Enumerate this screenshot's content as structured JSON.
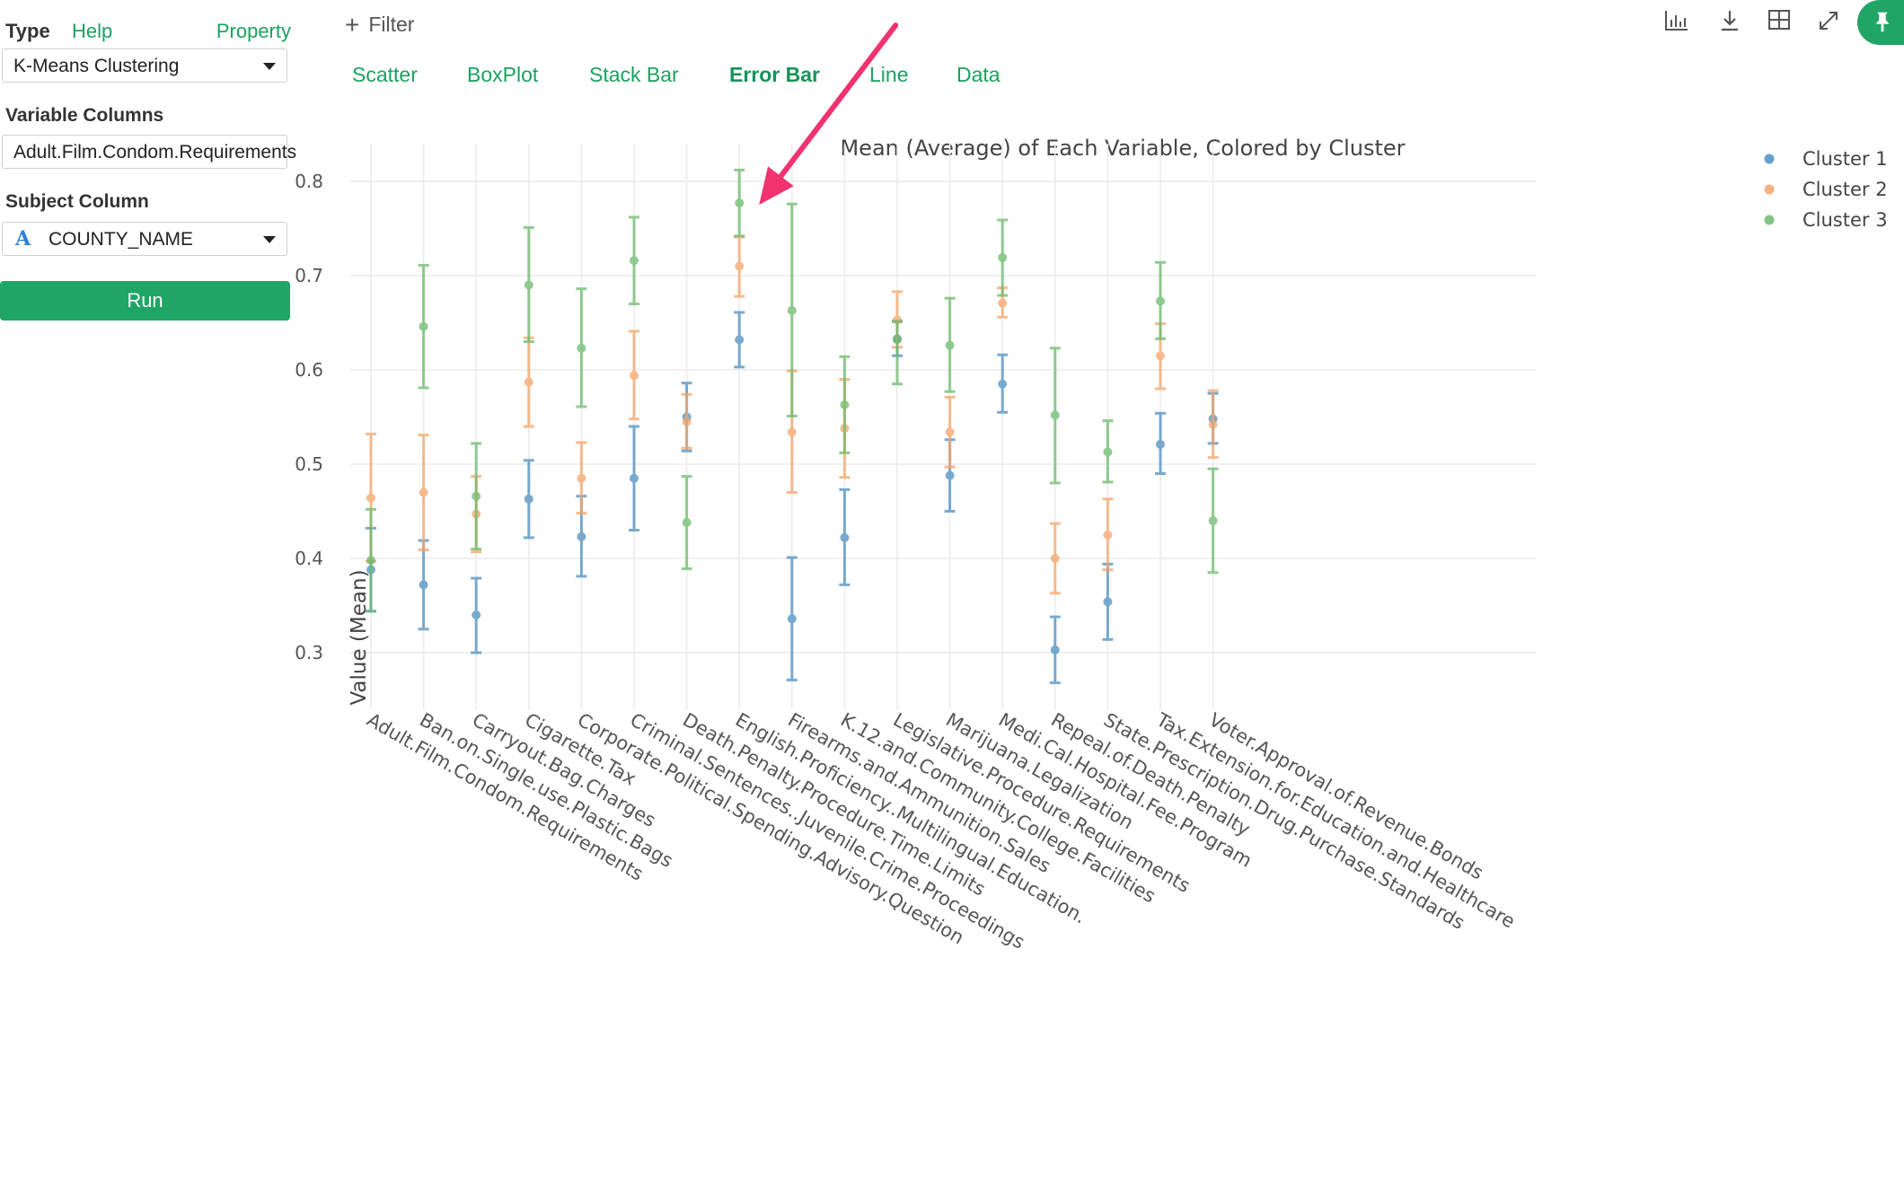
{
  "panel": {
    "type_label": "Type",
    "help_label": "Help",
    "property_label": "Property",
    "type_value": "K-Means Clustering",
    "variable_columns_label": "Variable Columns",
    "variable_columns_value": "Adult.Film.Condom.Requirements",
    "subject_column_label": "Subject Column",
    "subject_column_icon": "A",
    "subject_column_value": "COUNTY_NAME",
    "run_label": "Run"
  },
  "toolbar": {
    "filter_label": "Filter",
    "tabs": [
      "Scatter",
      "BoxPlot",
      "Stack Bar",
      "Error Bar",
      "Line",
      "Data"
    ],
    "active_tab": "Error Bar",
    "icons": [
      "bar-chart-icon",
      "download-icon",
      "grid-icon",
      "expand-icon",
      "pin-icon"
    ]
  },
  "chart_data": {
    "type": "errorbar",
    "title": "Mean (Average) of Each Variable, Colored by Cluster",
    "ylabel": "Value (Mean)",
    "ylim": [
      0.24,
      0.84
    ],
    "yticks": [
      0.3,
      0.4,
      0.5,
      0.6,
      0.7,
      0.8
    ],
    "yticklabels": [
      "0.3",
      "0.4",
      "0.5",
      "0.6",
      "0.7",
      "0.8"
    ],
    "grid": true,
    "legend": "top-right",
    "categories": [
      "Adult.Film.Condom.Requirements",
      "Ban.on.Single.use.Plastic.Bags",
      "Carryout.Bag.Charges",
      "Cigarette.Tax",
      "Corporate.Political.Spending.Advisory.Question",
      "Criminal.Sentences..Juvenile.Crime.Proceedings",
      "Death.Penalty.Procedure.Time.Limits",
      "English.Proficiency..Multilingual.Education.",
      "Firearms.and.Ammunition.Sales",
      "K.12.and.Community.College.Facilities",
      "Legislative.Procedure.Requirements",
      "Marijuana.Legalization",
      "Medi.Cal.Hospital.Fee.Program",
      "Repeal.of.Death.Penalty",
      "State.Prescription.Drug.Purchase.Standards",
      "Tax.Extension.for.Education.and.Healthcare",
      "Voter.Approval.of.Revenue.Bonds"
    ],
    "series": [
      {
        "name": "Cluster 1",
        "color": "#4e8fc0",
        "mean": [
          0.388,
          0.372,
          0.34,
          0.463,
          0.423,
          0.485,
          0.55,
          0.632,
          0.336,
          0.422,
          0.633,
          0.488,
          0.585,
          0.303,
          0.354,
          0.521,
          0.548
        ],
        "lower": [
          0.344,
          0.325,
          0.3,
          0.422,
          0.381,
          0.43,
          0.514,
          0.603,
          0.271,
          0.372,
          0.615,
          0.45,
          0.555,
          0.268,
          0.314,
          0.49,
          0.522
        ],
        "upper": [
          0.432,
          0.419,
          0.379,
          0.504,
          0.466,
          0.54,
          0.586,
          0.661,
          0.401,
          0.473,
          0.652,
          0.526,
          0.616,
          0.338,
          0.394,
          0.554,
          0.575
        ]
      },
      {
        "name": "Cluster 2",
        "color": "#f5a56a",
        "mean": [
          0.464,
          0.47,
          0.447,
          0.587,
          0.485,
          0.594,
          0.545,
          0.71,
          0.534,
          0.538,
          0.653,
          0.534,
          0.671,
          0.4,
          0.425,
          0.615,
          0.542
        ],
        "lower": [
          0.397,
          0.409,
          0.407,
          0.54,
          0.448,
          0.548,
          0.517,
          0.678,
          0.47,
          0.486,
          0.624,
          0.497,
          0.656,
          0.363,
          0.388,
          0.58,
          0.507
        ],
        "upper": [
          0.532,
          0.531,
          0.487,
          0.634,
          0.523,
          0.641,
          0.574,
          0.741,
          0.599,
          0.59,
          0.683,
          0.571,
          0.687,
          0.437,
          0.463,
          0.649,
          0.578
        ]
      },
      {
        "name": "Cluster 3",
        "color": "#6cba6c",
        "mean": [
          0.398,
          0.646,
          0.466,
          0.69,
          0.623,
          0.716,
          0.438,
          0.777,
          0.663,
          0.563,
          0.632,
          0.626,
          0.719,
          0.552,
          0.513,
          0.673,
          0.44
        ],
        "lower": [
          0.344,
          0.581,
          0.41,
          0.63,
          0.561,
          0.67,
          0.389,
          0.742,
          0.551,
          0.512,
          0.585,
          0.577,
          0.679,
          0.48,
          0.481,
          0.633,
          0.385
        ],
        "upper": [
          0.452,
          0.711,
          0.522,
          0.751,
          0.686,
          0.762,
          0.487,
          0.812,
          0.776,
          0.614,
          0.651,
          0.676,
          0.759,
          0.623,
          0.546,
          0.714,
          0.495
        ]
      }
    ],
    "annotation": {
      "type": "arrow",
      "color": "#f0336e",
      "points_to": {
        "category": "English.Proficiency..Multilingual.Education.",
        "series": "Cluster 3"
      }
    }
  }
}
